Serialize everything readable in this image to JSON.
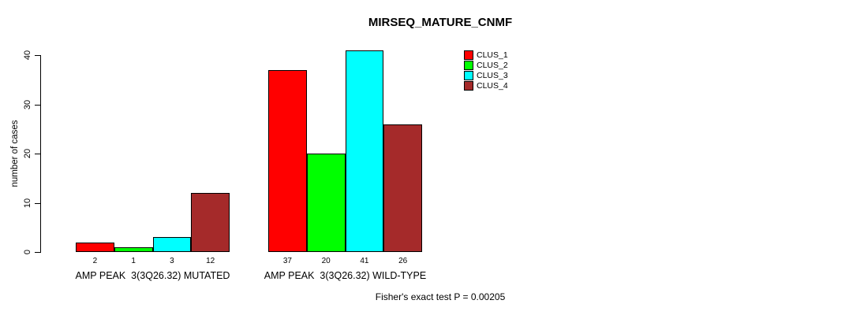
{
  "chart_data": {
    "type": "bar",
    "title": "MIRSEQ_MATURE_CNMF",
    "ylabel": "number of cases",
    "xlabel": "",
    "ylim": [
      0,
      40
    ],
    "yticks": [
      0,
      10,
      20,
      30,
      40
    ],
    "grid": false,
    "legend_position": "top-right",
    "series": [
      {
        "name": "CLUS_1",
        "color": "#FF0000"
      },
      {
        "name": "CLUS_2",
        "color": "#00FF00"
      },
      {
        "name": "CLUS_3",
        "color": "#00FFFF"
      },
      {
        "name": "CLUS_4",
        "color": "#A52A2A"
      }
    ],
    "groups": [
      {
        "label": "AMP PEAK  3(3Q26.32) MUTATED",
        "values": [
          2,
          1,
          3,
          12
        ]
      },
      {
        "label": "AMP PEAK  3(3Q26.32) WILD-TYPE",
        "values": [
          37,
          20,
          41,
          26
        ]
      }
    ],
    "annotation": "Fisher's exact test P = 0.00205"
  }
}
